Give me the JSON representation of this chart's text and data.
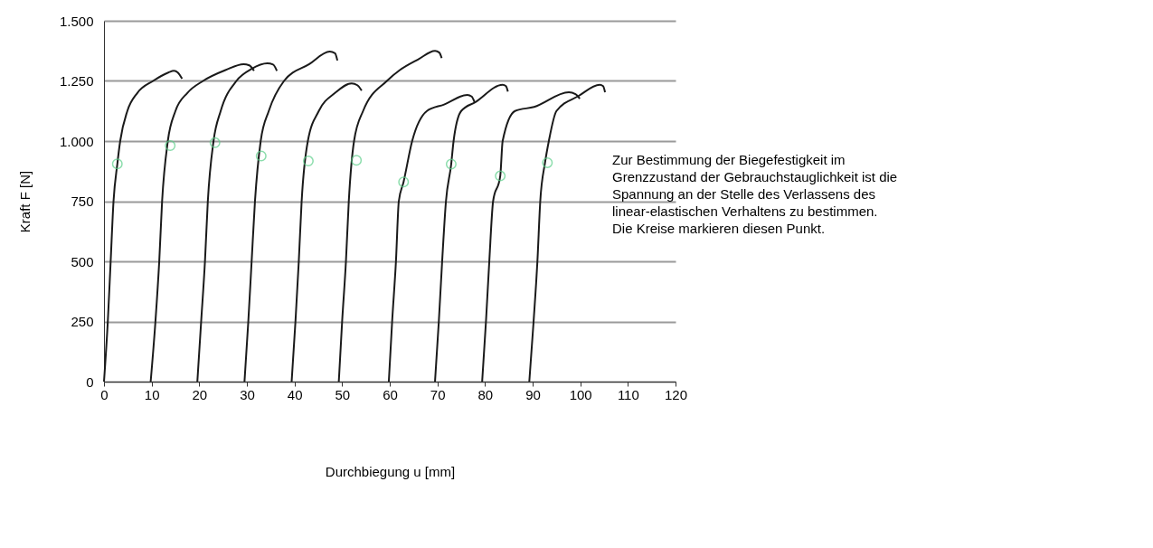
{
  "chart_data": {
    "type": "line",
    "xlabel": "Durchbiegung u [mm]",
    "ylabel": "Kraft F [N]",
    "annotations": [
      "Zur Bestimmung der Biegefestigkeit im\nGrenzzustand der Gebrauchstauglichkeit ist die\nSpannung an der Stelle des Verlassens des\nlinear-elastischen Verhaltens zu bestimmen.\nDie Kreise markieren diesen Punkt."
    ],
    "xlim": [
      0,
      120
    ],
    "xticks": [
      0,
      10,
      20,
      30,
      40,
      50,
      60,
      70,
      80,
      90,
      100,
      110,
      120
    ],
    "ylim": [
      0,
      1500
    ],
    "yticks": [
      0,
      250,
      500,
      750,
      {
        "value": 1000,
        "label": "1.000"
      },
      {
        "value": 1250,
        "label": "1.250"
      },
      {
        "value": 1500,
        "label": "1.500"
      }
    ],
    "grid": "y",
    "line_style": "solid",
    "series": [
      {
        "color": "#1a1a1a",
        "x": [
          0,
          0.8,
          1.4,
          2.0,
          2.8,
          3.4,
          4.9,
          7.0,
          10.3,
          13.5,
          14.7,
          15.5,
          16.4
        ],
        "values": [
          0,
          250,
          500,
          750,
          905,
          1000,
          1125,
          1200,
          1250,
          1285,
          1292,
          1285,
          1259
        ]
      },
      {
        "color": "#1a1a1a",
        "x": [
          9.8,
          10.8,
          11.6,
          12.2,
          13.4,
          15.0,
          17.5,
          20.8,
          25.5,
          29.3,
          30.5,
          31.5
        ],
        "values": [
          0,
          250,
          500,
          750,
          1000,
          1125,
          1200,
          1250,
          1295,
          1320,
          1315,
          1292
        ]
      },
      {
        "color": "#1a1a1a",
        "x": [
          19.6,
          20.4,
          21.2,
          21.8,
          23.0,
          24.5,
          27.8,
          31.0,
          34.3,
          35.5,
          36.3
        ],
        "values": [
          0,
          250,
          500,
          750,
          1000,
          1125,
          1250,
          1300,
          1323,
          1318,
          1292
        ]
      },
      {
        "color": "#1a1a1a",
        "x": [
          29.5,
          30.3,
          31.0,
          31.7,
          32.9,
          34.6,
          37.8,
          43.1,
          47.4,
          48.5,
          49.0
        ],
        "values": [
          0,
          250,
          500,
          750,
          1000,
          1125,
          1250,
          1320,
          1372,
          1365,
          1335
        ]
      },
      {
        "color": "#1a1a1a",
        "x": [
          39.4,
          40.2,
          40.9,
          41.5,
          42.8,
          45.1,
          48.5,
          52.0,
          53.2,
          54.1
        ],
        "values": [
          0,
          250,
          500,
          750,
          1000,
          1125,
          1200,
          1240,
          1232,
          1210
        ]
      },
      {
        "color": "#1a1a1a",
        "x": [
          49.3,
          50.0,
          50.8,
          51.4,
          52.5,
          54.4,
          59.4,
          62.1,
          66.0,
          69.5,
          70.4,
          70.9
        ],
        "values": [
          0,
          250,
          500,
          750,
          1000,
          1125,
          1250,
          1295,
          1340,
          1375,
          1368,
          1345
        ]
      },
      {
        "color": "#1a1a1a",
        "x": [
          59.8,
          60.5,
          61.3,
          61.9,
          62.9,
          64.7,
          67.8,
          71.4,
          76.3,
          77.2,
          77.8
        ],
        "values": [
          0,
          250,
          500,
          750,
          830,
          1000,
          1125,
          1152,
          1192,
          1185,
          1162
        ]
      },
      {
        "color": "#1a1a1a",
        "x": [
          69.5,
          70.3,
          71.0,
          71.8,
          72.9,
          73.4,
          75.0,
          78.0,
          83.7,
          84.4,
          84.8
        ],
        "values": [
          0,
          250,
          500,
          750,
          904,
          1000,
          1125,
          1162,
          1234,
          1228,
          1206
        ]
      },
      {
        "color": "#1a1a1a",
        "x": [
          79.4,
          80.2,
          80.9,
          81.7,
          83.2,
          83.7,
          86.3,
          90.3,
          97.6,
          99.0,
          99.9
        ],
        "values": [
          0,
          250,
          500,
          750,
          855,
          1000,
          1125,
          1142,
          1203,
          1195,
          1176
        ]
      },
      {
        "color": "#1a1a1a",
        "x": [
          89.3,
          90.2,
          91.0,
          91.6,
          92.6,
          93.4,
          95.0,
          99.6,
          104.1,
          104.8,
          105.2
        ],
        "values": [
          0,
          250,
          500,
          750,
          910,
          1000,
          1125,
          1187,
          1234,
          1228,
          1203
        ]
      },
      {
        "type": "scatter",
        "marker": "circle",
        "color": "#5ccf8a",
        "x": [
          2.8,
          13.9,
          23.3,
          33.0,
          42.9,
          53.0,
          62.9,
          72.9,
          83.2,
          93.1
        ],
        "values": [
          905,
          981,
          993,
          938,
          917,
          920,
          830,
          904,
          855,
          910
        ]
      }
    ]
  }
}
